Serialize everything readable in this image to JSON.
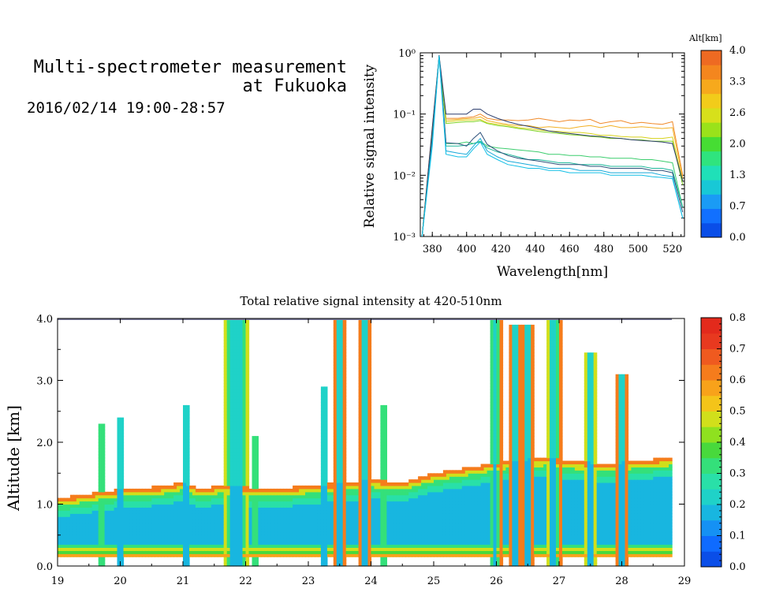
{
  "header": {
    "title_line1": "Multi-spectrometer measurement",
    "title_line2": "at Fukuoka",
    "subtitle": "2016/02/14 19:00-28:57"
  },
  "chart_data": [
    {
      "type": "line",
      "name": "spectra",
      "xlabel": "Wavelength[nm]",
      "ylabel": "Relative signal intensity",
      "xlim": [
        373,
        527
      ],
      "ylim": [
        0.001,
        1
      ],
      "yscale": "log",
      "x_ticks": [
        380,
        400,
        420,
        440,
        460,
        480,
        500,
        520
      ],
      "y_ticks": [
        {
          "v": 0.001,
          "label": "10⁻³"
        },
        {
          "v": 0.01,
          "label": "10⁻²"
        },
        {
          "v": 0.1,
          "label": "10⁻¹"
        },
        {
          "v": 1,
          "label": "10⁰"
        }
      ],
      "colorbar": {
        "title": "Alt[km]",
        "ticks": [
          "0.0",
          "0.7",
          "1.3",
          "2.0",
          "2.6",
          "3.3",
          "4.0"
        ],
        "colors": [
          "#0a4ee8",
          "#1170ff",
          "#1a9bf5",
          "#18c8d6",
          "#1fe0b8",
          "#2fe47e",
          "#46dd33",
          "#9ae21a",
          "#d7e01b",
          "#f2cc1a",
          "#f7a91c",
          "#f4861e",
          "#ee6a22"
        ]
      },
      "series": [
        {
          "color": "#f08a2a",
          "x": [
            374,
            380,
            384,
            388,
            395,
            400,
            404,
            408,
            412,
            418,
            424,
            430,
            436,
            442,
            448,
            454,
            460,
            466,
            472,
            478,
            484,
            490,
            496,
            502,
            508,
            514,
            520,
            526
          ],
          "y": [
            0.001,
            0.06,
            0.85,
            0.085,
            0.085,
            0.088,
            0.09,
            0.1,
            0.085,
            0.08,
            0.08,
            0.078,
            0.08,
            0.085,
            0.08,
            0.075,
            0.08,
            0.078,
            0.082,
            0.07,
            0.075,
            0.078,
            0.07,
            0.073,
            0.07,
            0.068,
            0.075,
            0.01
          ]
        },
        {
          "color": "#f2b024",
          "x": [
            374,
            380,
            384,
            388,
            395,
            400,
            404,
            408,
            412,
            418,
            424,
            430,
            436,
            442,
            448,
            454,
            460,
            466,
            472,
            478,
            484,
            490,
            496,
            502,
            508,
            514,
            520,
            526
          ],
          "y": [
            0.001,
            0.055,
            0.85,
            0.08,
            0.082,
            0.084,
            0.085,
            0.09,
            0.078,
            0.072,
            0.068,
            0.065,
            0.065,
            0.06,
            0.062,
            0.06,
            0.058,
            0.062,
            0.065,
            0.06,
            0.065,
            0.06,
            0.06,
            0.062,
            0.06,
            0.058,
            0.06,
            0.009
          ]
        },
        {
          "color": "#d8d21a",
          "x": [
            374,
            380,
            384,
            388,
            395,
            400,
            404,
            408,
            412,
            418,
            424,
            430,
            436,
            442,
            448,
            454,
            460,
            466,
            472,
            478,
            484,
            490,
            496,
            502,
            508,
            514,
            520,
            526
          ],
          "y": [
            0.001,
            0.05,
            0.85,
            0.075,
            0.078,
            0.08,
            0.08,
            0.082,
            0.072,
            0.068,
            0.065,
            0.06,
            0.058,
            0.055,
            0.053,
            0.052,
            0.05,
            0.05,
            0.048,
            0.045,
            0.045,
            0.043,
            0.042,
            0.042,
            0.04,
            0.04,
            0.042,
            0.008
          ]
        },
        {
          "color": "#7ed321",
          "x": [
            374,
            380,
            384,
            388,
            395,
            400,
            404,
            408,
            412,
            418,
            424,
            430,
            436,
            442,
            448,
            454,
            460,
            466,
            472,
            478,
            484,
            490,
            496,
            502,
            508,
            514,
            520,
            526
          ],
          "y": [
            0.001,
            0.05,
            0.85,
            0.07,
            0.073,
            0.075,
            0.075,
            0.078,
            0.07,
            0.065,
            0.062,
            0.058,
            0.055,
            0.052,
            0.05,
            0.048,
            0.046,
            0.045,
            0.043,
            0.042,
            0.04,
            0.04,
            0.038,
            0.038,
            0.036,
            0.036,
            0.036,
            0.007
          ]
        },
        {
          "color": "#2e3f6e",
          "x": [
            374,
            380,
            384,
            388,
            395,
            400,
            404,
            408,
            412,
            418,
            424,
            430,
            436,
            442,
            448,
            454,
            460,
            466,
            472,
            478,
            484,
            490,
            496,
            502,
            508,
            514,
            520,
            526
          ],
          "y": [
            0.001,
            0.06,
            0.9,
            0.1,
            0.1,
            0.1,
            0.12,
            0.12,
            0.1,
            0.085,
            0.075,
            0.068,
            0.063,
            0.058,
            0.053,
            0.05,
            0.048,
            0.046,
            0.044,
            0.043,
            0.041,
            0.04,
            0.038,
            0.037,
            0.036,
            0.035,
            0.033,
            0.008
          ]
        },
        {
          "color": "#3ccd6e",
          "x": [
            374,
            380,
            384,
            388,
            395,
            400,
            404,
            408,
            412,
            418,
            424,
            430,
            436,
            442,
            448,
            454,
            460,
            466,
            472,
            478,
            484,
            490,
            496,
            502,
            508,
            514,
            520,
            526
          ],
          "y": [
            0.001,
            0.04,
            0.9,
            0.033,
            0.033,
            0.035,
            0.033,
            0.036,
            0.03,
            0.028,
            0.027,
            0.026,
            0.025,
            0.024,
            0.022,
            0.022,
            0.021,
            0.021,
            0.02,
            0.02,
            0.019,
            0.019,
            0.019,
            0.018,
            0.018,
            0.017,
            0.016,
            0.003
          ]
        },
        {
          "color": "#1fb89a",
          "x": [
            374,
            380,
            384,
            388,
            395,
            400,
            404,
            408,
            412,
            418,
            424,
            430,
            436,
            442,
            448,
            454,
            460,
            466,
            472,
            478,
            484,
            490,
            496,
            502,
            508,
            514,
            520,
            526
          ],
          "y": [
            0.001,
            0.04,
            0.9,
            0.03,
            0.03,
            0.031,
            0.033,
            0.035,
            0.028,
            0.024,
            0.022,
            0.02,
            0.018,
            0.018,
            0.017,
            0.016,
            0.016,
            0.015,
            0.015,
            0.015,
            0.014,
            0.014,
            0.014,
            0.014,
            0.013,
            0.013,
            0.012,
            0.003
          ]
        },
        {
          "color": "#2a4f7a",
          "x": [
            374,
            380,
            384,
            388,
            395,
            400,
            404,
            408,
            412,
            418,
            424,
            430,
            436,
            442,
            448,
            454,
            460,
            466,
            472,
            478,
            484,
            490,
            496,
            502,
            508,
            514,
            520,
            526
          ],
          "y": [
            0.001,
            0.04,
            0.92,
            0.034,
            0.033,
            0.03,
            0.04,
            0.05,
            0.032,
            0.025,
            0.021,
            0.019,
            0.018,
            0.017,
            0.016,
            0.015,
            0.015,
            0.015,
            0.014,
            0.014,
            0.013,
            0.013,
            0.013,
            0.013,
            0.012,
            0.012,
            0.011,
            0.0025
          ]
        },
        {
          "color": "#18a9d9",
          "x": [
            374,
            380,
            384,
            388,
            395,
            400,
            404,
            408,
            412,
            418,
            424,
            430,
            436,
            442,
            448,
            454,
            460,
            466,
            472,
            478,
            484,
            490,
            496,
            502,
            508,
            514,
            520,
            526
          ],
          "y": [
            0.001,
            0.035,
            0.9,
            0.025,
            0.023,
            0.022,
            0.03,
            0.04,
            0.025,
            0.02,
            0.017,
            0.016,
            0.015,
            0.014,
            0.013,
            0.013,
            0.013,
            0.012,
            0.012,
            0.012,
            0.011,
            0.011,
            0.011,
            0.011,
            0.011,
            0.01,
            0.0095,
            0.002
          ]
        },
        {
          "color": "#12bfe6",
          "x": [
            374,
            380,
            384,
            388,
            395,
            400,
            404,
            408,
            412,
            418,
            424,
            430,
            436,
            442,
            448,
            454,
            460,
            466,
            472,
            478,
            484,
            490,
            496,
            502,
            508,
            514,
            520,
            526
          ],
          "y": [
            0.001,
            0.03,
            0.88,
            0.022,
            0.02,
            0.02,
            0.027,
            0.035,
            0.022,
            0.018,
            0.015,
            0.014,
            0.013,
            0.013,
            0.012,
            0.012,
            0.011,
            0.011,
            0.011,
            0.011,
            0.01,
            0.01,
            0.01,
            0.01,
            0.0095,
            0.0092,
            0.0088,
            0.002
          ]
        }
      ]
    },
    {
      "type": "heatmap",
      "name": "time-altitude",
      "title": "Total relative signal intensity at 420-510nm",
      "ylabel": "Altitude [km]",
      "xlim": [
        19,
        29
      ],
      "ylim": [
        0,
        4
      ],
      "x_ticks": [
        "19",
        "20",
        "21",
        "22",
        "23",
        "24",
        "25",
        "26",
        "27",
        "28",
        "29"
      ],
      "y_ticks": [
        "0.0",
        "1.0",
        "2.0",
        "3.0",
        "4.0"
      ],
      "colorbar": {
        "ticks": [
          "0.0",
          "0.1",
          "0.2",
          "0.3",
          "0.4",
          "0.5",
          "0.6",
          "0.7",
          "0.8"
        ],
        "colors": [
          "#0a4ee8",
          "#0f6bff",
          "#1591f4",
          "#18b6e0",
          "#1fd2c8",
          "#29e0a8",
          "#34e07a",
          "#48d93c",
          "#8fe11f",
          "#d1df1b",
          "#f4c419",
          "#f8a21a",
          "#f57c1c",
          "#ef5a1f",
          "#e8391f",
          "#e32a1c"
        ]
      },
      "max_x": 28.8,
      "cloud_top": [
        {
          "t": 19.0,
          "h": 1.1
        },
        {
          "t": 19.4,
          "h": 1.15
        },
        {
          "t": 19.7,
          "h": 1.2
        },
        {
          "t": 20.1,
          "h": 1.25
        },
        {
          "t": 20.6,
          "h": 1.28
        },
        {
          "t": 21.0,
          "h": 1.35
        },
        {
          "t": 21.3,
          "h": 1.25
        },
        {
          "t": 21.6,
          "h": 1.3
        },
        {
          "t": 22.5,
          "h": 1.25
        },
        {
          "t": 23.0,
          "h": 1.3
        },
        {
          "t": 23.6,
          "h": 1.35
        },
        {
          "t": 24.0,
          "h": 1.4
        },
        {
          "t": 24.5,
          "h": 1.35
        },
        {
          "t": 25.0,
          "h": 1.5
        },
        {
          "t": 25.6,
          "h": 1.6
        },
        {
          "t": 26.2,
          "h": 1.7
        },
        {
          "t": 26.8,
          "h": 1.75
        },
        {
          "t": 27.2,
          "h": 1.7
        },
        {
          "t": 27.8,
          "h": 1.65
        },
        {
          "t": 28.2,
          "h": 1.7
        },
        {
          "t": 28.8,
          "h": 1.75
        }
      ],
      "plumes": [
        {
          "t": 19.7,
          "top": 2.3,
          "w": 0.05
        },
        {
          "t": 20.0,
          "top": 2.4,
          "w": 0.06
        },
        {
          "t": 21.05,
          "top": 2.6,
          "w": 0.06
        },
        {
          "t": 21.85,
          "top": 4.0,
          "w": 0.22
        },
        {
          "t": 22.15,
          "top": 2.1,
          "w": 0.05
        },
        {
          "t": 23.25,
          "top": 2.9,
          "w": 0.07
        },
        {
          "t": 23.5,
          "top": 4.0,
          "w": 0.09
        },
        {
          "t": 23.9,
          "top": 4.0,
          "w": 0.09
        },
        {
          "t": 24.2,
          "top": 2.6,
          "w": 0.05
        },
        {
          "t": 25.98,
          "top": 4.0,
          "w": 0.1
        },
        {
          "t": 26.3,
          "top": 3.9,
          "w": 0.08
        },
        {
          "t": 26.5,
          "top": 3.9,
          "w": 0.08
        },
        {
          "t": 26.92,
          "top": 4.0,
          "w": 0.12
        },
        {
          "t": 27.5,
          "top": 3.45,
          "w": 0.11
        },
        {
          "t": 28.0,
          "top": 3.1,
          "w": 0.09
        }
      ]
    }
  ]
}
